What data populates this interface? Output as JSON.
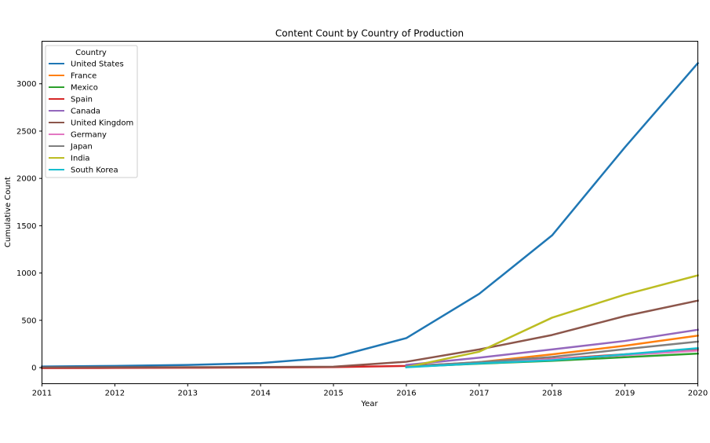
{
  "chart_data": {
    "type": "line",
    "title": "Content Count by Country of Production",
    "xlabel": "Year",
    "ylabel": "Cumulative Count",
    "x": [
      2011,
      2012,
      2013,
      2014,
      2015,
      2016,
      2017,
      2018,
      2019,
      2020
    ],
    "x_tick_labels": [
      "2011",
      "2012",
      "2013",
      "2014",
      "2015",
      "2016",
      "2017",
      "2018",
      "2019",
      "2020"
    ],
    "xlim": [
      2011,
      2020
    ],
    "ylim": [
      -170,
      3450
    ],
    "y_ticks": [
      0,
      500,
      1000,
      1500,
      2000,
      2500,
      3000
    ],
    "y_tick_labels": [
      "0",
      "500",
      "1000",
      "1500",
      "2000",
      "2500",
      "3000"
    ],
    "grid": false,
    "legend": {
      "title": "Country",
      "position": "top-left"
    },
    "series": [
      {
        "name": "United States",
        "color": "#1f77b4",
        "values": [
          12,
          18,
          28,
          48,
          108,
          312,
          780,
          1398,
          2330,
          3218
        ]
      },
      {
        "name": "France",
        "color": "#ff7f0e",
        "values": [
          null,
          null,
          null,
          null,
          null,
          8,
          58,
          140,
          232,
          338
        ]
      },
      {
        "name": "Mexico",
        "color": "#2ca02c",
        "values": [
          null,
          null,
          null,
          null,
          null,
          8,
          42,
          72,
          110,
          148
        ]
      },
      {
        "name": "Spain",
        "color": "#d62728",
        "values": [
          -5,
          -3,
          -1,
          2,
          5,
          18,
          52,
          92,
          140,
          190
        ]
      },
      {
        "name": "Canada",
        "color": "#9467bd",
        "values": [
          null,
          null,
          null,
          null,
          null,
          28,
          105,
          192,
          282,
          400
        ]
      },
      {
        "name": "United Kingdom",
        "color": "#8c564b",
        "values": [
          2,
          3,
          4,
          6,
          10,
          62,
          192,
          345,
          545,
          708
        ]
      },
      {
        "name": "Germany",
        "color": "#e377c2",
        "values": [
          null,
          null,
          null,
          null,
          null,
          10,
          48,
          88,
          132,
          180
        ]
      },
      {
        "name": "Japan",
        "color": "#7f7f7f",
        "values": [
          null,
          null,
          null,
          null,
          null,
          12,
          58,
          112,
          195,
          275
        ]
      },
      {
        "name": "India",
        "color": "#bcbd22",
        "values": [
          null,
          null,
          null,
          null,
          null,
          5,
          168,
          528,
          772,
          975
        ]
      },
      {
        "name": "South Korea",
        "color": "#17becf",
        "values": [
          null,
          null,
          null,
          null,
          null,
          4,
          45,
          78,
          140,
          205
        ]
      }
    ]
  }
}
